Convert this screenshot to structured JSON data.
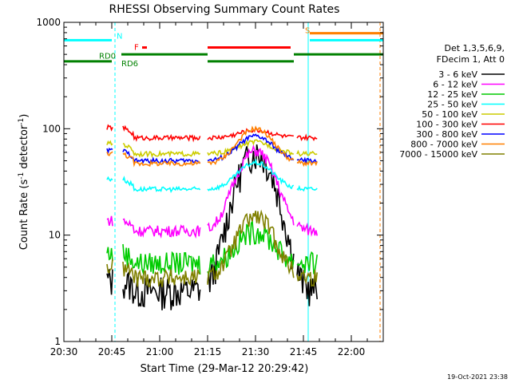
{
  "chart_data": {
    "type": "line",
    "title": "RHESSI Observing Summary Count Rates",
    "xlabel": "Start Time (29-Mar-12 20:29:42)",
    "ylabel_main": "Count Rate (s",
    "ylabel_sup1": "-1",
    "ylabel_mid": " detector",
    "ylabel_sup2": "-1",
    "ylabel_end": ")",
    "yscale": "log",
    "ylim": [
      1,
      1000
    ],
    "xlim_minutes": [
      0,
      100
    ],
    "x_ticks": [
      {
        "m": 0,
        "label": "20:30"
      },
      {
        "m": 15,
        "label": "20:45"
      },
      {
        "m": 30,
        "label": "21:00"
      },
      {
        "m": 45,
        "label": "21:15"
      },
      {
        "m": 60,
        "label": "21:30"
      },
      {
        "m": 75,
        "label": "21:45"
      },
      {
        "m": 90,
        "label": "22:00"
      }
    ],
    "y_ticks": [
      {
        "v": 1,
        "label": "1"
      },
      {
        "v": 10,
        "label": "10"
      },
      {
        "v": 100,
        "label": "100"
      },
      {
        "v": 1000,
        "label": "1000"
      }
    ],
    "legend_header": [
      "Det 1,3,5,6,9,",
      "FDecim 1, Att 0"
    ],
    "series": [
      {
        "name": "3 - 6 keV",
        "color": "#000000",
        "base": 3.0,
        "peak": 60,
        "noise": 0.35,
        "start": 50
      },
      {
        "name": "6 - 12 keV",
        "color": "#ff00ff",
        "base": 11,
        "peak": 62,
        "noise": 0.12,
        "start": 45
      },
      {
        "name": "12 - 25 keV",
        "color": "#00cc00",
        "base": 5.5,
        "peak": 11,
        "noise": 0.25,
        "start": 45
      },
      {
        "name": "25 - 50 keV",
        "color": "#00ffff",
        "base": 27,
        "peak": 48,
        "noise": 0.05,
        "start": 45
      },
      {
        "name": "50 - 100 keV",
        "color": "#cccc00",
        "base": 58,
        "peak": 75,
        "noise": 0.05,
        "start": 45
      },
      {
        "name": "100 - 300 keV",
        "color": "#ff0000",
        "base": 82,
        "peak": 97,
        "noise": 0.05,
        "start": 45
      },
      {
        "name": "300 - 800 keV",
        "color": "#0000ff",
        "base": 50,
        "peak": 85,
        "noise": 0.05,
        "start": 45
      },
      {
        "name": "800 - 7000 keV",
        "color": "#ff8000",
        "base": 47,
        "peak": 100,
        "noise": 0.05,
        "start": 45
      },
      {
        "name": "7000 - 15000 keV",
        "color": "#808000",
        "base": 4.0,
        "peak": 15,
        "noise": 0.2,
        "start": 45
      }
    ],
    "annotations": [
      {
        "text": "N",
        "color": "#00ffff",
        "m": 16.5,
        "y": 750
      },
      {
        "text": "F",
        "color": "#ff0000",
        "m": 22,
        "y": 590
      },
      {
        "text": "RD0",
        "color": "#008000",
        "m": 11,
        "y": 490
      },
      {
        "text": "RD6",
        "color": "#008000",
        "m": 18,
        "y": 415
      },
      {
        "text": "S",
        "color": "#ff8000",
        "m": 75.5,
        "y": 850
      }
    ],
    "bars": [
      {
        "label": "night",
        "color": "#00ffff",
        "from": 0,
        "to": 15,
        "y": 680
      },
      {
        "label": "night",
        "color": "#00ffff",
        "from": 77,
        "to": 100,
        "y": 680
      },
      {
        "label": "flare",
        "color": "#ff0000",
        "from": 24.5,
        "to": 26,
        "y": 580
      },
      {
        "label": "flare",
        "color": "#ff0000",
        "from": 45,
        "to": 71,
        "y": 580
      },
      {
        "label": "saa",
        "color": "#ff8000",
        "from": 77,
        "to": 100,
        "y": 790
      },
      {
        "label": "decimation",
        "color": "#008000",
        "from": 0,
        "to": 15,
        "y": 430
      },
      {
        "label": "decimation",
        "color": "#008000",
        "from": 18,
        "to": 45,
        "y": 500
      },
      {
        "label": "decimation",
        "color": "#008000",
        "from": 45,
        "to": 72,
        "y": 430
      },
      {
        "label": "decimation",
        "color": "#008000",
        "from": 72,
        "to": 100,
        "y": 500
      }
    ],
    "vlines": [
      {
        "m": 16.0,
        "color": "#00ffff",
        "dash": true
      },
      {
        "m": 76.5,
        "color": "#00ffff",
        "dash": false
      },
      {
        "m": 99.0,
        "color": "#ff8000",
        "dash": true
      }
    ],
    "footer_date": "19-Oct-2021 23:38"
  }
}
